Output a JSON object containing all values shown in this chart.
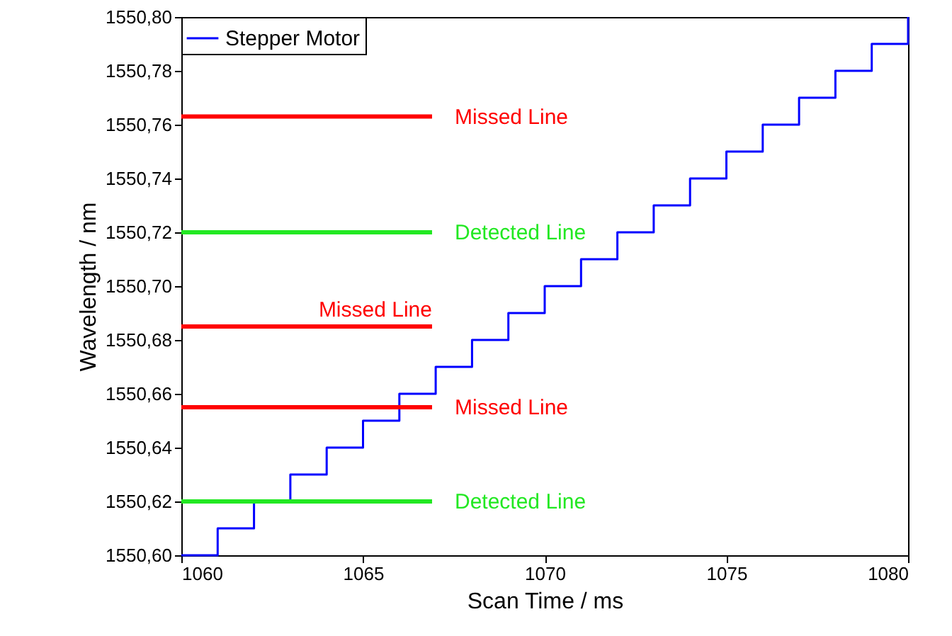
{
  "chart_data": {
    "type": "line",
    "xlabel": "Scan Time / ms",
    "ylabel": "Wavelength / nm",
    "xlim": [
      1060,
      1080
    ],
    "xticks": [
      1060,
      1065,
      1070,
      1075,
      1080
    ],
    "ylim": [
      1550.6,
      1550.8
    ],
    "yticks": [
      {
        "value": 1550.6,
        "label": "1550,60"
      },
      {
        "value": 1550.62,
        "label": "1550,62"
      },
      {
        "value": 1550.64,
        "label": "1550,64"
      },
      {
        "value": 1550.66,
        "label": "1550,66"
      },
      {
        "value": 1550.68,
        "label": "1550,68"
      },
      {
        "value": 1550.7,
        "label": "1550,70"
      },
      {
        "value": 1550.72,
        "label": "1550,72"
      },
      {
        "value": 1550.74,
        "label": "1550,74"
      },
      {
        "value": 1550.76,
        "label": "1550,76"
      },
      {
        "value": 1550.78,
        "label": "1550,78"
      },
      {
        "value": 1550.8,
        "label": "1550,80"
      }
    ],
    "grid": false,
    "legend": "top left",
    "series": [
      {
        "name": "Stepper Motor",
        "type": "step",
        "color": "#0000ff",
        "x": [
          1060,
          1061,
          1062,
          1063,
          1064,
          1065,
          1066,
          1067,
          1068,
          1069,
          1070,
          1071,
          1072,
          1073,
          1074,
          1075,
          1076,
          1077,
          1078,
          1079,
          1080
        ],
        "values": [
          1550.6,
          1550.61,
          1550.62,
          1550.63,
          1550.64,
          1550.65,
          1550.66,
          1550.67,
          1550.68,
          1550.69,
          1550.7,
          1550.71,
          1550.72,
          1550.73,
          1550.74,
          1550.75,
          1550.76,
          1550.77,
          1550.78,
          1550.79,
          1550.8
        ]
      },
      {
        "name": "Missed Line",
        "color": "#ff0000",
        "x": [
          1060,
          1066.9
        ],
        "values": [
          1550.763,
          1550.763
        ]
      },
      {
        "name": "Detected Line",
        "color": "#22e822",
        "x": [
          1060,
          1066.9
        ],
        "values": [
          1550.72,
          1550.72
        ]
      },
      {
        "name": "Missed Line",
        "color": "#ff0000",
        "x": [
          1060,
          1066.9
        ],
        "values": [
          1550.685,
          1550.685
        ]
      },
      {
        "name": "Missed Line",
        "color": "#ff0000",
        "x": [
          1060,
          1066.9
        ],
        "values": [
          1550.655,
          1550.655
        ]
      },
      {
        "name": "Detected Line",
        "color": "#22e822",
        "x": [
          1060,
          1066.9
        ],
        "values": [
          1550.62,
          1550.62
        ]
      }
    ]
  }
}
